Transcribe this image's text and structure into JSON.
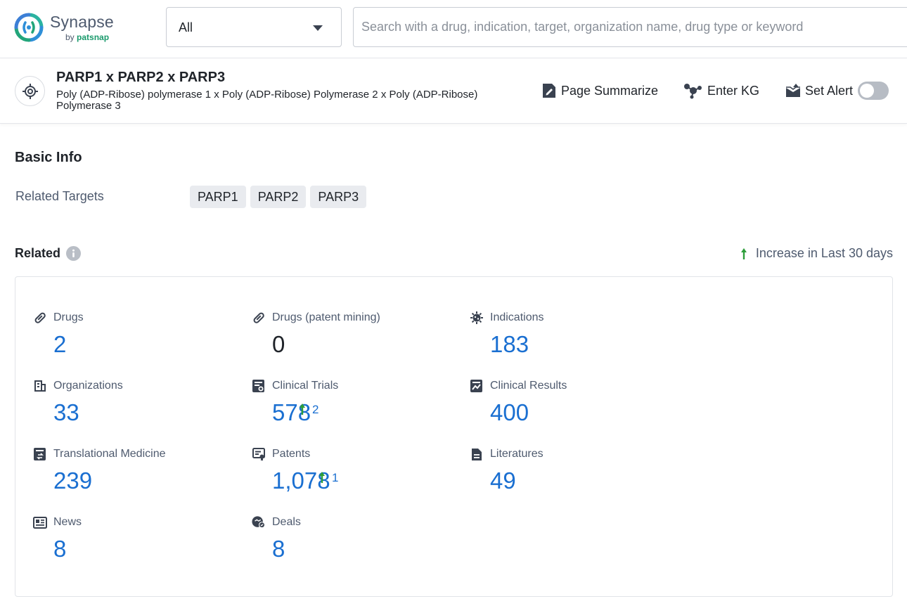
{
  "app": {
    "name": "Synapse",
    "by_prefix": "by",
    "by_brand": "patsnap"
  },
  "search": {
    "scope_value": "All",
    "placeholder": "Search with a drug, indication, target, organization name, drug type or keyword",
    "value": ""
  },
  "entity": {
    "title": "PARP1 x PARP2 x PARP3",
    "subtitle": "Poly (ADP-Ribose) polymerase 1 x Poly (ADP-Ribose) Polymerase 2 x Poly (ADP-Ribose) Polymerase 3",
    "actions": {
      "summarize": "Page Summarize",
      "kg": "Enter KG",
      "alert": "Set Alert"
    },
    "alert_enabled": false
  },
  "basic_info": {
    "title": "Basic Info",
    "related_targets_label": "Related Targets",
    "targets": [
      "PARP1",
      "PARP2",
      "PARP3"
    ]
  },
  "related": {
    "title": "Related",
    "increase_note": "Increase in Last 30 days",
    "colors": {
      "value": "#1a6fd1",
      "increase_arrow": "#2e9e3a"
    },
    "stats": [
      {
        "label": "Drugs",
        "value": "2",
        "icon": "pill-icon"
      },
      {
        "label": "Drugs (patent mining)",
        "value": "0",
        "icon": "pill-icon"
      },
      {
        "label": "Indications",
        "value": "183",
        "icon": "virus-icon"
      },
      {
        "label": "Organizations",
        "value": "33",
        "icon": "building-icon"
      },
      {
        "label": "Clinical Trials",
        "value": "578",
        "icon": "clinical-trial-icon",
        "increase": "2"
      },
      {
        "label": "Clinical Results",
        "value": "400",
        "icon": "clinical-result-icon"
      },
      {
        "label": "Translational Medicine",
        "value": "239",
        "icon": "translational-medicine-icon"
      },
      {
        "label": "Patents",
        "value": "1,078",
        "icon": "patent-icon",
        "increase": "1"
      },
      {
        "label": "Literatures",
        "value": "49",
        "icon": "document-icon"
      },
      {
        "label": "News",
        "value": "8",
        "icon": "news-icon"
      },
      {
        "label": "Deals",
        "value": "8",
        "icon": "deal-icon"
      }
    ]
  }
}
